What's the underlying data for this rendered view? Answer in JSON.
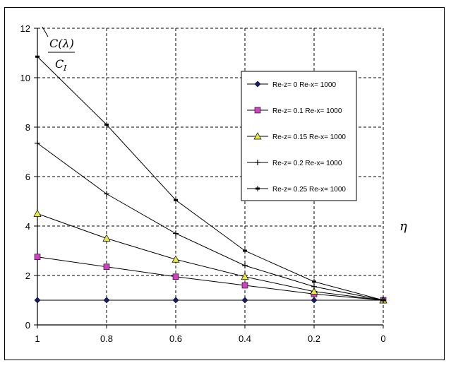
{
  "chart_data": {
    "type": "line",
    "ylabel_top": "C(λ)",
    "ylabel_bottom": "C",
    "ylabel_bottom_sub": "I",
    "xlabel": "η",
    "xlim": [
      1,
      0
    ],
    "ylim": [
      0,
      12
    ],
    "x_ticks": [
      "1",
      "0.8",
      "0.6",
      "0.4",
      "0.2",
      "0"
    ],
    "x_tick_values": [
      1,
      0.8,
      0.6,
      0.4,
      0.2,
      0
    ],
    "y_ticks": [
      "0",
      "2",
      "4",
      "6",
      "8",
      "10",
      "12"
    ],
    "y_tick_values": [
      0,
      2,
      4,
      6,
      8,
      10,
      12
    ],
    "grid": true,
    "legend_position": "right",
    "x": [
      1,
      0.8,
      0.6,
      0.4,
      0.2,
      0
    ],
    "series": [
      {
        "name": "Re-z= 0 Re-x= 1000",
        "values": [
          1,
          1,
          1,
          1,
          1,
          1
        ],
        "marker": "diamond",
        "color": "#1a1a6e"
      },
      {
        "name": "Re-z= 0.1 Re-x= 1000",
        "values": [
          2.75,
          2.35,
          1.95,
          1.6,
          1.25,
          1
        ],
        "marker": "square",
        "color": "#d040c0"
      },
      {
        "name": "Re-z= 0.15 Re-x= 1000",
        "values": [
          4.5,
          3.5,
          2.65,
          1.95,
          1.35,
          1
        ],
        "marker": "triangle",
        "color": "#e8e840"
      },
      {
        "name": "Re-z= 0.2 Re-x= 1000",
        "values": [
          7.35,
          5.3,
          3.7,
          2.4,
          1.55,
          1
        ],
        "marker": "plus",
        "color": "#000000"
      },
      {
        "name": "Re-z= 0.25 Re-x= 1000",
        "values": [
          10.85,
          8.1,
          5.05,
          3.0,
          1.75,
          1
        ],
        "marker": "bar",
        "color": "#000000"
      }
    ]
  }
}
